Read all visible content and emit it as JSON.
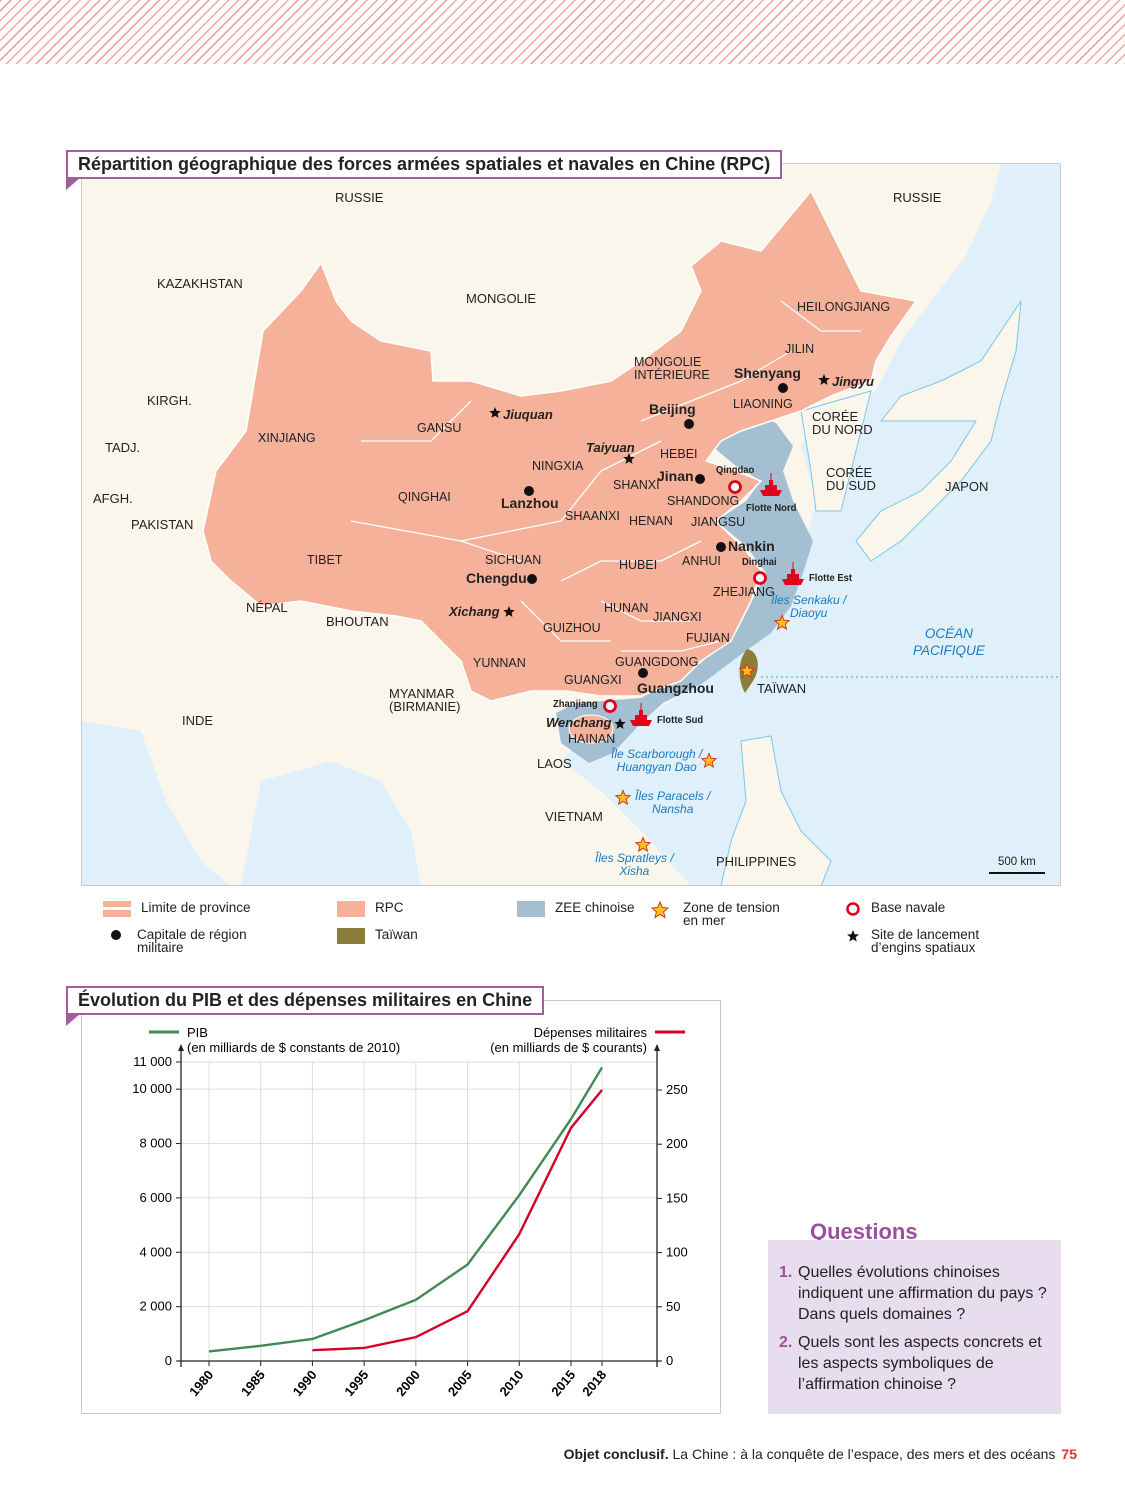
{
  "map": {
    "title": "Répartition géographique des forces armées spatiales et navales en Chine (RPC)",
    "colors": {
      "rpc": "#f5b19a",
      "zee": "#a3bfd1",
      "taiwan": "#8b7d3a",
      "sea": "#dff0fa",
      "land": "#fbf6ec",
      "naval": "#e3001b",
      "tension_star": "#f7c21a"
    },
    "labels": [
      {
        "text": "RUSSIE",
        "kind": "country"
      },
      {
        "text": "RUSSIE",
        "kind": "country"
      },
      {
        "text": "KAZAKHSTAN",
        "kind": "country"
      },
      {
        "text": "MONGOLIE",
        "kind": "country"
      },
      {
        "text": "HEILONGJIANG",
        "kind": "province"
      },
      {
        "text": "JILIN",
        "kind": "province"
      },
      {
        "text": "MONGOLIE\nINTÉRIEURE",
        "kind": "province"
      },
      {
        "text": "Shenyang",
        "kind": "city"
      },
      {
        "text": "Jingyu",
        "kind": "launch"
      },
      {
        "text": "KIRGH.",
        "kind": "country"
      },
      {
        "text": "XINJIANG",
        "kind": "province"
      },
      {
        "text": "GANSU",
        "kind": "province"
      },
      {
        "text": "Jiuquan",
        "kind": "launch"
      },
      {
        "text": "Beijing",
        "kind": "city"
      },
      {
        "text": "LIAONING",
        "kind": "province"
      },
      {
        "text": "CORÉE\nDU NORD",
        "kind": "country"
      },
      {
        "text": "TADJ.",
        "kind": "country"
      },
      {
        "text": "Taiyuan",
        "kind": "launch"
      },
      {
        "text": "HEBEI",
        "kind": "province"
      },
      {
        "text": "NINGXIA",
        "kind": "province"
      },
      {
        "text": "Qingdao",
        "kind": "naval"
      },
      {
        "text": "Jinan",
        "kind": "city"
      },
      {
        "text": "CORÉE\nDU SUD",
        "kind": "country"
      },
      {
        "text": "JAPON",
        "kind": "country"
      },
      {
        "text": "AFGH.",
        "kind": "country"
      },
      {
        "text": "QINGHAI",
        "kind": "province"
      },
      {
        "text": "SHANXI",
        "kind": "province"
      },
      {
        "text": "SHANDONG",
        "kind": "province"
      },
      {
        "text": "Lanzhou",
        "kind": "city"
      },
      {
        "text": "Flotte Nord",
        "kind": "naval"
      },
      {
        "text": "PAKISTAN",
        "kind": "country"
      },
      {
        "text": "SHAANXI",
        "kind": "province"
      },
      {
        "text": "HENAN",
        "kind": "province"
      },
      {
        "text": "JIANGSU",
        "kind": "province"
      },
      {
        "text": "Nankin",
        "kind": "city"
      },
      {
        "text": "TIBET",
        "kind": "province"
      },
      {
        "text": "SICHUAN",
        "kind": "province"
      },
      {
        "text": "ANHUI",
        "kind": "province"
      },
      {
        "text": "Dinghai",
        "kind": "naval"
      },
      {
        "text": "HUBEI",
        "kind": "province"
      },
      {
        "text": "Chengdu",
        "kind": "city"
      },
      {
        "text": "Flotte Est",
        "kind": "naval"
      },
      {
        "text": "ZHEJIANG",
        "kind": "province"
      },
      {
        "text": "Îles Senkaku /\nDiaoyu",
        "kind": "sea"
      },
      {
        "text": "NÉPAL",
        "kind": "country"
      },
      {
        "text": "Xichang",
        "kind": "launch"
      },
      {
        "text": "BHOUTAN",
        "kind": "country"
      },
      {
        "text": "HUNAN",
        "kind": "province"
      },
      {
        "text": "JIANGXI",
        "kind": "province"
      },
      {
        "text": "OCÉAN\nPACIFIQUE",
        "kind": "ocean"
      },
      {
        "text": "GUIZHOU",
        "kind": "province"
      },
      {
        "text": "FUJIAN",
        "kind": "province"
      },
      {
        "text": "YUNNAN",
        "kind": "province"
      },
      {
        "text": "GUANGDONG",
        "kind": "province"
      },
      {
        "text": "GUANGXI",
        "kind": "province"
      },
      {
        "text": "Guangzhou",
        "kind": "city"
      },
      {
        "text": "TAÏWAN",
        "kind": "country"
      },
      {
        "text": "MYANMAR\n(BIRMANIE)",
        "kind": "country"
      },
      {
        "text": "Zhanjiang",
        "kind": "naval"
      },
      {
        "text": "INDE",
        "kind": "country"
      },
      {
        "text": "Wenchang",
        "kind": "launch"
      },
      {
        "text": "Flotte Sud",
        "kind": "naval"
      },
      {
        "text": "HAINAN",
        "kind": "province"
      },
      {
        "text": "Île Scarborough /\nHuangyan Dao",
        "kind": "sea"
      },
      {
        "text": "LAOS",
        "kind": "country"
      },
      {
        "text": "Îles Paracels /\nNansha",
        "kind": "sea"
      },
      {
        "text": "VIETNAM",
        "kind": "country"
      },
      {
        "text": "Îles Spratleys /\nXisha",
        "kind": "sea"
      },
      {
        "text": "PHILIPPINES",
        "kind": "country"
      },
      {
        "text": "500 km",
        "kind": "scale"
      }
    ]
  },
  "legend": {
    "province_limit": "Limite de province",
    "rpc": "RPC",
    "zee": "ZEE chinoise",
    "tension": "Zone de tension\nen mer",
    "naval_base": "Base navale",
    "capital": "Capitale de région\nmilitaire",
    "taiwan": "Taïwan",
    "launch_site": "Site de lancement\nd’engins spatiaux"
  },
  "chart_data": {
    "type": "line",
    "title": "Évolution du PIB et des dépenses militaires en Chine",
    "x": [
      1980,
      1985,
      1990,
      1995,
      2000,
      2005,
      2010,
      2015,
      2018
    ],
    "x_tick_labels": [
      "1980",
      "1985",
      "1990",
      "1995",
      "2000",
      "2005",
      "2010",
      "2015",
      "2018"
    ],
    "series": [
      {
        "name": "PIB",
        "unit": "(en milliards de $ constants de 2010)",
        "axis": "left",
        "color": "#3f8a55",
        "values": [
          350,
          560,
          810,
          1500,
          2250,
          3550,
          6100,
          8900,
          10800
        ]
      },
      {
        "name": "Dépenses militaires",
        "unit": "(en milliards de $ courants)",
        "axis": "right",
        "color": "#d4002a",
        "values": [
          null,
          null,
          10,
          12,
          22,
          46,
          117,
          215,
          250
        ]
      }
    ],
    "y_left": {
      "ticks": [
        0,
        2000,
        4000,
        6000,
        8000,
        10000,
        11000
      ],
      "tick_labels": [
        "0",
        "2 000",
        "4 000",
        "6 000",
        "8 000",
        "10 000",
        "11 000"
      ],
      "ylim": [
        0,
        11000
      ]
    },
    "y_right": {
      "ticks": [
        0,
        50,
        100,
        150,
        200,
        250
      ],
      "tick_labels": [
        "0",
        "50",
        "100",
        "150",
        "200",
        "250"
      ],
      "ylim": [
        0,
        275
      ]
    },
    "grid": true,
    "legend": "top"
  },
  "questions": {
    "title": "Questions",
    "items": [
      {
        "num": "1.",
        "text": "Quelles évolutions chinoises indiquent une affirmation du pays ? Dans quels domaines ?"
      },
      {
        "num": "2.",
        "text": "Quels sont les aspects concrets et les aspects symboliques de l’affirmation chinoise ?"
      }
    ]
  },
  "footer": {
    "bold": "Objet conclusif.",
    "text": "La Chine : à la conquête de l’espace, des mers et des océans",
    "page": "75"
  }
}
